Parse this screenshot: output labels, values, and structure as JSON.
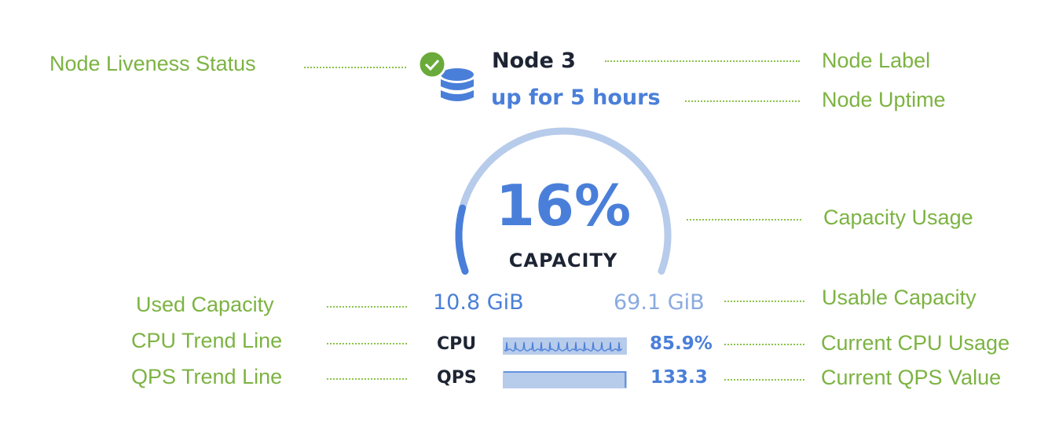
{
  "annotations": {
    "liveness": "Node Liveness Status",
    "node_label": "Node Label",
    "uptime": "Node Uptime",
    "capacity_usage": "Capacity Usage",
    "used_capacity": "Used Capacity",
    "usable_capacity": "Usable Capacity",
    "cpu_trend": "CPU Trend Line",
    "cpu_current": "Current CPU Usage",
    "qps_trend": "QPS Trend Line",
    "qps_current": "Current QPS Value"
  },
  "node": {
    "name": "Node 3",
    "uptime": "up for 5 hours",
    "status": "live",
    "icon": "database-icon",
    "status_icon": "check-circle-icon"
  },
  "capacity": {
    "percent_text": "16%",
    "percent": 16,
    "label": "CAPACITY",
    "used": "10.8 GiB",
    "usable": "69.1 GiB"
  },
  "metrics": {
    "cpu_label": "CPU",
    "cpu_value": "85.9%",
    "qps_label": "QPS",
    "qps_value": "133.3"
  },
  "colors": {
    "annotation": "#7cb342",
    "accent": "#4a7fd9",
    "track": "#b7cbeb",
    "status_ok": "#6aaa3a",
    "text_dark": "#1d2433"
  }
}
